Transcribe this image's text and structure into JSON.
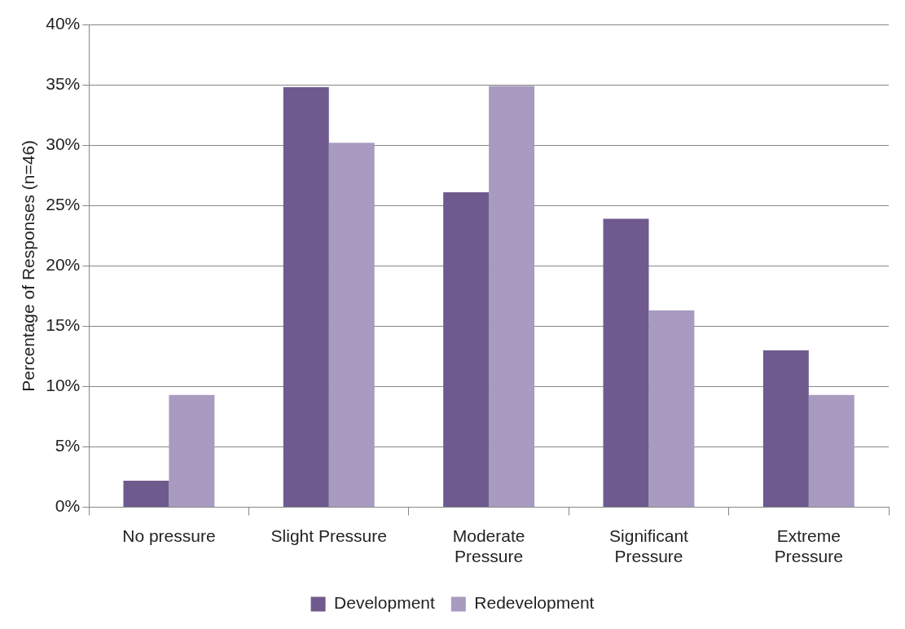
{
  "chart_data": {
    "type": "bar",
    "ylabel": "Percentage of Responses (n=46)",
    "categories": [
      "No pressure",
      "Slight Pressure",
      "Moderate Pressure",
      "Significant Pressure",
      "Extreme Pressure"
    ],
    "series": [
      {
        "name": "Development",
        "color": "#6f5a8e",
        "values": [
          2.2,
          34.8,
          26.1,
          23.9,
          13.0
        ]
      },
      {
        "name": "Redevelopment",
        "color": "#a89bbf",
        "values": [
          9.3,
          30.2,
          34.9,
          16.3,
          9.3
        ]
      }
    ],
    "ylim": [
      0,
      40
    ],
    "yticks": [
      {
        "value": 0,
        "label": "0%"
      },
      {
        "value": 5,
        "label": "5%"
      },
      {
        "value": 10,
        "label": "10%"
      },
      {
        "value": 15,
        "label": "15%"
      },
      {
        "value": 20,
        "label": "20%"
      },
      {
        "value": 25,
        "label": "25%"
      },
      {
        "value": 30,
        "label": "30%"
      },
      {
        "value": 35,
        "label": "35%"
      },
      {
        "value": 40,
        "label": "40%"
      }
    ],
    "grid": "y",
    "legend": "bottom"
  }
}
